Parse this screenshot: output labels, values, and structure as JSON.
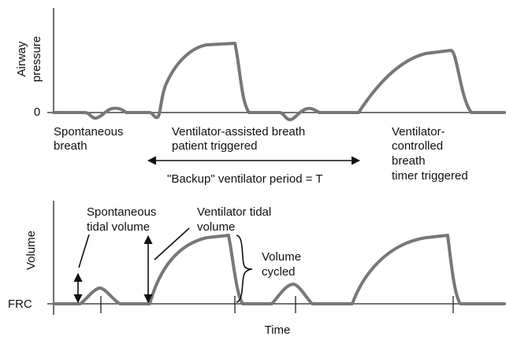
{
  "top_panel": {
    "y_axis_label": [
      "Airway",
      "pressure"
    ],
    "zero_label": "0",
    "spontaneous": [
      "Spontaneous",
      "breath"
    ],
    "assisted": [
      "Ventilator-assisted breath",
      "patient triggered"
    ],
    "controlled": [
      "Ventilator-",
      "controlled",
      "breath",
      "timer triggered"
    ],
    "backup_period": "\"Backup\" ventilator period = T"
  },
  "bottom_panel": {
    "y_axis_label": "Volume",
    "baseline_label": "FRC",
    "x_axis_label": "Time",
    "spontaneous_tidal": [
      "Spontaneous",
      "tidal volume"
    ],
    "ventilator_tidal": [
      "Ventilator tidal",
      "volume"
    ],
    "volume_cycled": [
      "Volume",
      "cycled"
    ]
  }
}
